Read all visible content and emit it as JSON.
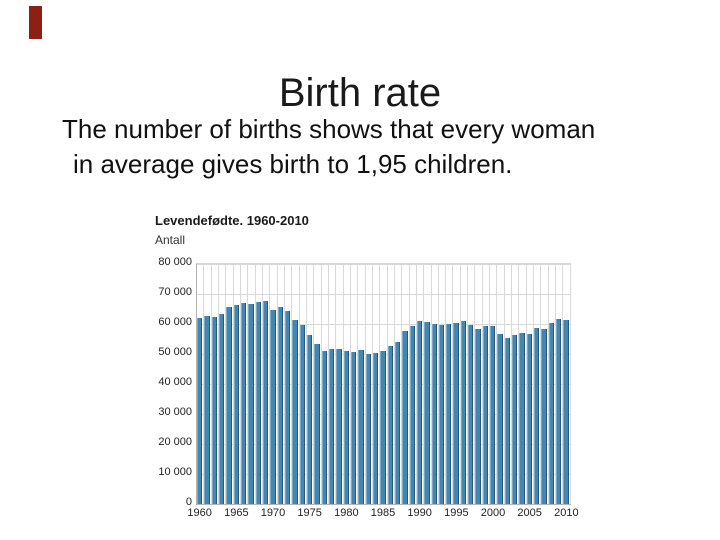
{
  "slide": {
    "title": "Birth rate",
    "body_line1": "The number of births shows that every woman",
    "body_line2": "in average gives birth to 1,95 children.",
    "accent_color": "#8e1f13"
  },
  "chart_data": {
    "type": "bar",
    "title": "Levendefødte. 1960-2010",
    "ylabel": "Antall",
    "xlabel": "",
    "ylim": [
      0,
      80000
    ],
    "ytick_step": 10000,
    "ytick_labels": [
      "0",
      "10 000",
      "20 000",
      "30 000",
      "40 000",
      "50 000",
      "60 000",
      "70 000",
      "80 000"
    ],
    "xtick_labels": [
      "1960",
      "1965",
      "1970",
      "1975",
      "1980",
      "1985",
      "1990",
      "1995",
      "2000",
      "2005",
      "2010"
    ],
    "xtick_every": 5,
    "grid": true,
    "legend": "none",
    "years": [
      1960,
      1961,
      1962,
      1963,
      1964,
      1965,
      1966,
      1967,
      1968,
      1969,
      1970,
      1971,
      1972,
      1973,
      1974,
      1975,
      1976,
      1977,
      1978,
      1979,
      1980,
      1981,
      1982,
      1983,
      1984,
      1985,
      1986,
      1987,
      1988,
      1989,
      1990,
      1991,
      1992,
      1993,
      1994,
      1995,
      1996,
      1997,
      1998,
      1999,
      2000,
      2001,
      2002,
      2003,
      2004,
      2005,
      2006,
      2007,
      2008,
      2009,
      2010
    ],
    "values": [
      61880,
      62555,
      62254,
      63290,
      65570,
      66277,
      67061,
      66779,
      67350,
      67746,
      64551,
      65550,
      64260,
      61208,
      59603,
      56345,
      53474,
      50877,
      51749,
      51580,
      51039,
      50708,
      51245,
      49937,
      50274,
      51134,
      52514,
      54027,
      57526,
      59303,
      60939,
      60808,
      60109,
      59678,
      60092,
      60292,
      60927,
      59801,
      58352,
      59298,
      59234,
      56696,
      55434,
      56458,
      56951,
      56756,
      58545,
      58459,
      60497,
      61807,
      61442
    ],
    "bar_color": "#4386b2",
    "bar_edge_dark": "#255a7e",
    "bar_edge_light": "#79abc9",
    "grid_color": "#d9d9d9",
    "axis_color": "#b4b4b4"
  }
}
